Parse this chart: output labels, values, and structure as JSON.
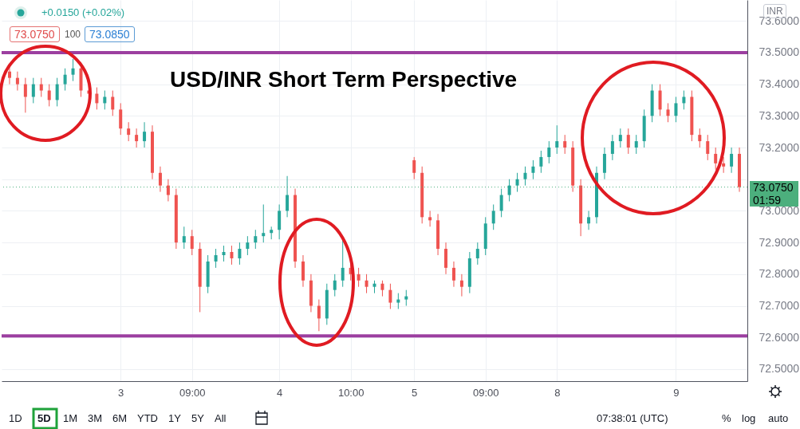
{
  "chart_data": {
    "type": "candlestick",
    "title": "USD/INR Short Term Perspective",
    "annotations": [
      "+0.0150 (+0.02%)",
      "73.0750",
      "100",
      "73.0850",
      "INR",
      "1D",
      "5D",
      "1M",
      "3M",
      "6M",
      "YTD",
      "1Y",
      "5Y",
      "All",
      "07:38:01 (UTC)",
      "%",
      "log",
      "auto"
    ],
    "categories": [
      null,
      null,
      null,
      null,
      null,
      null,
      null,
      null,
      null,
      null,
      null,
      null,
      null,
      null,
      "3",
      null,
      null,
      null,
      null,
      null,
      null,
      null,
      null,
      "09:00",
      null,
      null,
      null,
      null,
      null,
      null,
      null,
      null,
      null,
      null,
      "4",
      null,
      null,
      null,
      null,
      null,
      null,
      null,
      null,
      "10:00",
      null,
      null,
      null,
      null,
      null,
      null,
      null,
      "5",
      null,
      null,
      null,
      null,
      null,
      null,
      null,
      null,
      "09:00",
      null,
      null,
      null,
      null,
      null,
      null,
      null,
      null,
      "8",
      null,
      null,
      null,
      null,
      null,
      null,
      null,
      null,
      null,
      null,
      null,
      null,
      null,
      null,
      "9",
      null,
      null,
      null,
      null,
      null,
      null,
      null,
      null
    ],
    "ohlc": [
      [
        73.44,
        73.46,
        73.4,
        73.42
      ],
      [
        73.42,
        73.44,
        73.38,
        73.4
      ],
      [
        73.4,
        73.42,
        73.31,
        73.36
      ],
      [
        73.36,
        73.42,
        73.34,
        73.4
      ],
      [
        73.4,
        73.42,
        73.36,
        73.38
      ],
      [
        73.38,
        73.4,
        73.33,
        73.35
      ],
      [
        73.35,
        73.42,
        73.33,
        73.4
      ],
      [
        73.4,
        73.45,
        73.38,
        73.43
      ],
      [
        73.43,
        73.48,
        73.41,
        73.45
      ],
      [
        73.45,
        73.47,
        73.36,
        73.38
      ],
      [
        73.38,
        73.4,
        73.35,
        73.37
      ],
      [
        73.37,
        73.39,
        73.32,
        73.34
      ],
      [
        73.34,
        73.38,
        73.32,
        73.36
      ],
      [
        73.36,
        73.38,
        73.3,
        73.32
      ],
      [
        73.32,
        73.34,
        73.24,
        73.26
      ],
      [
        73.26,
        73.28,
        73.22,
        73.24
      ],
      [
        73.24,
        73.26,
        73.2,
        73.22
      ],
      [
        73.22,
        73.28,
        73.2,
        73.25
      ],
      [
        73.25,
        73.27,
        73.1,
        73.12
      ],
      [
        73.12,
        73.14,
        73.06,
        73.08
      ],
      [
        73.08,
        73.1,
        73.03,
        73.05
      ],
      [
        73.05,
        73.07,
        72.88,
        72.9
      ],
      [
        72.9,
        72.95,
        72.88,
        72.92
      ],
      [
        72.92,
        72.94,
        72.86,
        72.88
      ],
      [
        72.88,
        72.9,
        72.68,
        72.76
      ],
      [
        72.76,
        72.86,
        72.74,
        72.84
      ],
      [
        72.84,
        72.88,
        72.82,
        72.86
      ],
      [
        72.86,
        72.89,
        72.84,
        72.87
      ],
      [
        72.87,
        72.89,
        72.83,
        72.85
      ],
      [
        72.85,
        72.9,
        72.83,
        72.88
      ],
      [
        72.88,
        72.92,
        72.86,
        72.9
      ],
      [
        72.9,
        72.94,
        72.88,
        72.92
      ],
      [
        72.92,
        73.02,
        72.9,
        72.93
      ],
      [
        72.93,
        72.95,
        72.91,
        72.94
      ],
      [
        72.94,
        73.02,
        72.91,
        73.0
      ],
      [
        73.0,
        73.11,
        72.98,
        73.05
      ],
      [
        73.05,
        73.07,
        72.82,
        72.84
      ],
      [
        72.84,
        72.86,
        72.76,
        72.78
      ],
      [
        72.78,
        72.8,
        72.68,
        72.7
      ],
      [
        72.7,
        72.72,
        72.62,
        72.66
      ],
      [
        72.66,
        72.77,
        72.64,
        72.75
      ],
      [
        72.75,
        72.8,
        72.73,
        72.78
      ],
      [
        72.78,
        72.91,
        72.76,
        72.82
      ],
      [
        72.82,
        72.84,
        72.78,
        72.8
      ],
      [
        72.8,
        72.82,
        72.76,
        72.78
      ],
      [
        72.78,
        72.8,
        72.74,
        72.76
      ],
      [
        72.76,
        72.78,
        72.74,
        72.77
      ],
      [
        72.77,
        72.78,
        72.73,
        72.75
      ],
      [
        72.75,
        72.77,
        72.69,
        72.71
      ],
      [
        72.71,
        72.74,
        72.69,
        72.72
      ],
      [
        72.72,
        72.75,
        72.7,
        72.73
      ],
      [
        73.16,
        73.17,
        73.1,
        73.12
      ],
      [
        73.12,
        73.14,
        72.96,
        72.98
      ],
      [
        72.98,
        73.0,
        72.95,
        72.97
      ],
      [
        72.97,
        72.99,
        72.86,
        72.88
      ],
      [
        72.88,
        72.9,
        72.8,
        72.82
      ],
      [
        72.82,
        72.84,
        72.76,
        72.78
      ],
      [
        72.78,
        72.8,
        72.73,
        72.76
      ],
      [
        72.76,
        72.87,
        72.74,
        72.85
      ],
      [
        72.85,
        72.9,
        72.83,
        72.88
      ],
      [
        72.88,
        72.98,
        72.86,
        72.96
      ],
      [
        72.96,
        73.02,
        72.94,
        73.0
      ],
      [
        73.0,
        73.07,
        72.98,
        73.05
      ],
      [
        73.05,
        73.1,
        73.03,
        73.08
      ],
      [
        73.08,
        73.12,
        73.06,
        73.1
      ],
      [
        73.1,
        73.14,
        73.08,
        73.12
      ],
      [
        73.12,
        73.16,
        73.1,
        73.14
      ],
      [
        73.14,
        73.19,
        73.12,
        73.17
      ],
      [
        73.17,
        73.22,
        73.15,
        73.2
      ],
      [
        73.2,
        73.27,
        73.18,
        73.22
      ],
      [
        73.22,
        73.24,
        73.18,
        73.2
      ],
      [
        73.2,
        73.22,
        73.06,
        73.08
      ],
      [
        73.08,
        73.1,
        72.92,
        72.96
      ],
      [
        72.96,
        73.0,
        72.94,
        72.98
      ],
      [
        72.98,
        73.14,
        72.96,
        73.12
      ],
      [
        73.12,
        73.2,
        73.1,
        73.18
      ],
      [
        73.18,
        73.24,
        73.16,
        73.22
      ],
      [
        73.22,
        73.26,
        73.2,
        73.24
      ],
      [
        73.24,
        73.26,
        73.18,
        73.2
      ],
      [
        73.2,
        73.24,
        73.18,
        73.22
      ],
      [
        73.22,
        73.32,
        73.2,
        73.3
      ],
      [
        73.3,
        73.4,
        73.28,
        73.38
      ],
      [
        73.38,
        73.4,
        73.3,
        73.32
      ],
      [
        73.32,
        73.34,
        73.28,
        73.3
      ],
      [
        73.3,
        73.36,
        73.28,
        73.34
      ],
      [
        73.34,
        73.38,
        73.32,
        73.36
      ],
      [
        73.36,
        73.38,
        73.22,
        73.24
      ],
      [
        73.24,
        73.26,
        73.2,
        73.22
      ],
      [
        73.22,
        73.24,
        73.16,
        73.18
      ],
      [
        73.18,
        73.2,
        73.13,
        73.15
      ],
      [
        73.15,
        73.17,
        73.12,
        73.14
      ],
      [
        73.14,
        73.2,
        73.12,
        73.18
      ],
      [
        73.18,
        73.2,
        73.06,
        73.075
      ]
    ],
    "ylim": [
      72.462,
      73.666
    ],
    "yticks": [
      {
        "value": 72.5,
        "label": "72.5000"
      },
      {
        "value": 72.6,
        "label": "72.6000"
      },
      {
        "value": 72.7,
        "label": "72.7000"
      },
      {
        "value": 72.8,
        "label": "72.8000"
      },
      {
        "value": 72.9,
        "label": "72.9000"
      },
      {
        "value": 73.0,
        "label": "73.0000"
      },
      {
        "value": 73.1,
        "label": null
      },
      {
        "value": 73.2,
        "label": "73.2000"
      },
      {
        "value": 73.3,
        "label": "73.3000"
      },
      {
        "value": 73.4,
        "label": "73.4000"
      },
      {
        "value": 73.5,
        "label": "73.5000"
      },
      {
        "value": 73.6,
        "label": "73.6000"
      }
    ],
    "grid": true,
    "ref_lines": [
      {
        "axis": "y",
        "value": 73.5,
        "color": "#9c3fa0",
        "line_style": "solid"
      },
      {
        "axis": "y",
        "value": 72.605,
        "color": "#9c3fa0",
        "line_style": "solid"
      },
      {
        "axis": "y",
        "value": 73.075,
        "label": "73.0750\n01:59",
        "color": "#4caf7d",
        "line_style": "dotted"
      }
    ]
  }
}
